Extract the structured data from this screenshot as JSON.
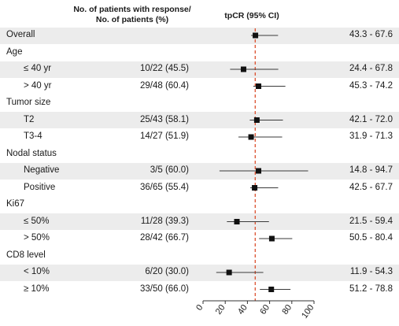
{
  "header": {
    "col_count_line1": "No. of patients with response/",
    "col_count_line2": "No. of patients (%)",
    "col_ci": "tpCR (95% CI)"
  },
  "chart_data": {
    "type": "forest",
    "reference_line": 47,
    "xlim": [
      0,
      100
    ],
    "xticks": [
      "0",
      "20",
      "40",
      "60",
      "80",
      "100"
    ],
    "rows": [
      {
        "label": "Overall",
        "kind": "data",
        "indent": false,
        "count": "",
        "point": 47.2,
        "lo": 43.3,
        "hi": 67.6,
        "ci": "43.3 - 67.6",
        "shaded": true
      },
      {
        "label": "Age",
        "kind": "group",
        "indent": false,
        "shaded": false
      },
      {
        "label": "≤ 40 yr",
        "kind": "data",
        "indent": true,
        "count": "10/22 (45.5)",
        "point": 36.5,
        "lo": 24.4,
        "hi": 67.8,
        "ci": "24.4 - 67.8",
        "shaded": true
      },
      {
        "label": "> 40 yr",
        "kind": "data",
        "indent": true,
        "count": "29/48 (60.4)",
        "point": 50.0,
        "lo": 45.3,
        "hi": 74.2,
        "ci": "45.3 - 74.2",
        "shaded": false
      },
      {
        "label": "Tumor size",
        "kind": "group",
        "indent": false,
        "shaded": false
      },
      {
        "label": "T2",
        "kind": "data",
        "indent": true,
        "count": "25/43 (58.1)",
        "point": 48.5,
        "lo": 42.1,
        "hi": 72.0,
        "ci": "42.1 - 72.0",
        "shaded": true
      },
      {
        "label": "T3-4",
        "kind": "data",
        "indent": true,
        "count": "14/27 (51.9)",
        "point": 43.3,
        "lo": 31.9,
        "hi": 71.3,
        "ci": "31.9 - 71.3",
        "shaded": false
      },
      {
        "label": "Nodal status",
        "kind": "group",
        "indent": false,
        "shaded": false
      },
      {
        "label": "Negative",
        "kind": "data",
        "indent": true,
        "count": "3/5 (60.0)",
        "point": 50.0,
        "lo": 14.8,
        "hi": 94.7,
        "ci": "14.8 - 94.7",
        "shaded": true
      },
      {
        "label": "Positive",
        "kind": "data",
        "indent": true,
        "count": "36/65 (55.4)",
        "point": 46.5,
        "lo": 42.5,
        "hi": 67.7,
        "ci": "42.5 - 67.7",
        "shaded": false
      },
      {
        "label": "Ki67",
        "kind": "group",
        "indent": false,
        "shaded": false
      },
      {
        "label": "≤ 50%",
        "kind": "data",
        "indent": true,
        "count": "11/28 (39.3)",
        "point": 30.5,
        "lo": 21.5,
        "hi": 59.4,
        "ci": "21.5 - 59.4",
        "shaded": true
      },
      {
        "label": "> 50%",
        "kind": "data",
        "indent": true,
        "count": "28/42 (66.7)",
        "point": 62.0,
        "lo": 50.5,
        "hi": 80.4,
        "ci": "50.5 - 80.4",
        "shaded": false
      },
      {
        "label": "CD8 level",
        "kind": "group",
        "indent": false,
        "shaded": false
      },
      {
        "label": "< 10%",
        "kind": "data",
        "indent": true,
        "count": "6/20 (30.0)",
        "point": 23.5,
        "lo": 11.9,
        "hi": 54.3,
        "ci": "11.9 - 54.3",
        "shaded": true
      },
      {
        "label": "≥ 10%",
        "kind": "data",
        "indent": true,
        "count": "33/50 (66.0)",
        "point": 61.5,
        "lo": 51.2,
        "hi": 78.8,
        "ci": "51.2 - 78.8",
        "shaded": false
      }
    ]
  }
}
